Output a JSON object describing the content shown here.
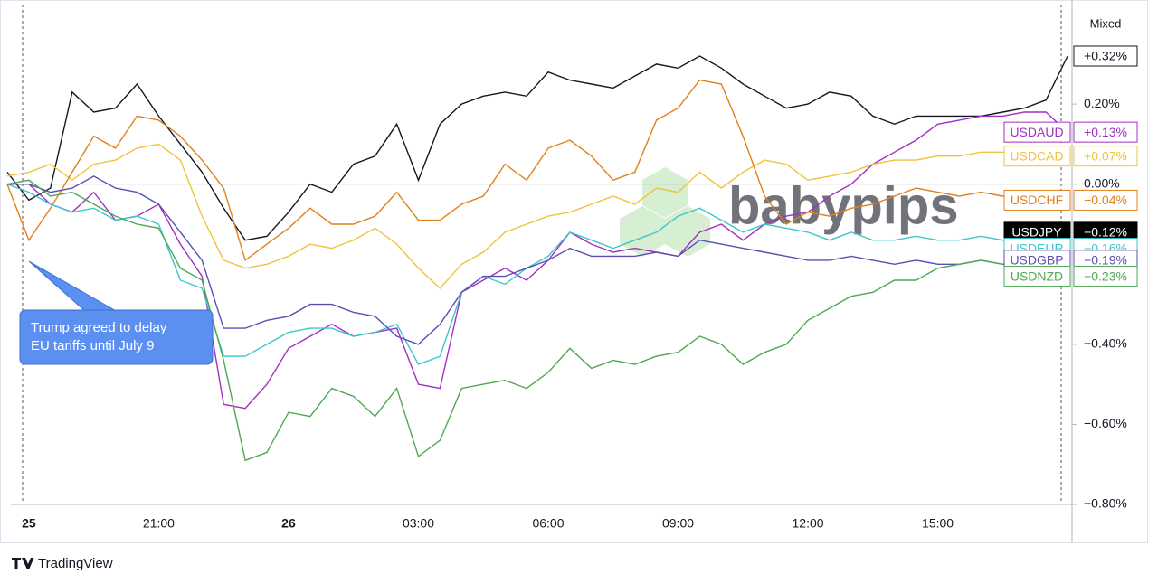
{
  "chart_data": {
    "type": "line",
    "header": "Mixed",
    "annotation": [
      "Trump agreed to delay",
      "EU tariffs until July 9"
    ],
    "watermark": "babypips",
    "footer": "TradingView",
    "categories": [
      null,
      "25",
      null,
      null,
      null,
      null,
      null,
      "21:00",
      null,
      null,
      null,
      null,
      null,
      "26",
      null,
      null,
      null,
      null,
      null,
      "03:00",
      null,
      null,
      null,
      null,
      null,
      "06:00",
      null,
      null,
      null,
      null,
      null,
      "09:00",
      null,
      null,
      null,
      null,
      null,
      "12:00",
      null,
      null,
      null,
      null,
      null,
      "15:00",
      null,
      null,
      null,
      null,
      null,
      null
    ],
    "ylim": [
      -0.8,
      0.46
    ],
    "yticks": [
      {
        "value": 0.2,
        "label": "0.20%"
      },
      {
        "value": 0,
        "label": "0.00%"
      },
      {
        "value": -0.4,
        "label": "−0.40%"
      },
      {
        "value": -0.6,
        "label": "−0.60%"
      },
      {
        "value": -0.8,
        "label": "−0.80%"
      }
    ],
    "zero_line": true,
    "series": [
      {
        "color": "#131722",
        "values": [
          0.03,
          -0.04,
          -0.01,
          0.23,
          0.18,
          0.19,
          0.25,
          0.17,
          0.1,
          0.03,
          -0.06,
          -0.14,
          -0.13,
          -0.07,
          0,
          -0.02,
          0.05,
          0.07,
          0.15,
          0.01,
          0.15,
          0.2,
          0.22,
          0.23,
          0.22,
          0.28,
          0.26,
          0.25,
          0.24,
          0.27,
          0.3,
          0.29,
          0.32,
          0.29,
          0.25,
          0.22,
          0.19,
          0.2,
          0.23,
          0.22,
          0.17,
          0.15,
          0.17,
          0.17,
          0.17,
          0.17,
          0.18,
          0.19,
          0.21,
          0.32
        ],
        "value_labels": [
          null,
          null,
          null,
          null,
          null,
          null,
          null,
          null,
          null,
          null,
          null,
          null,
          null,
          null,
          null,
          null,
          null,
          null,
          null,
          null,
          null,
          null,
          null,
          null,
          null,
          null,
          null,
          null,
          null,
          null,
          null,
          null,
          null,
          null,
          null,
          null,
          null,
          null,
          null,
          null,
          null,
          null,
          null,
          null,
          null,
          null,
          null,
          null,
          null,
          "+0.32%"
        ]
      },
      {
        "name": "USDAUD",
        "color": "#a32fc4",
        "values": [
          0,
          0,
          -0.05,
          -0.07,
          -0.02,
          -0.09,
          -0.08,
          -0.05,
          -0.15,
          -0.23,
          -0.55,
          -0.56,
          -0.5,
          -0.41,
          -0.38,
          -0.35,
          -0.38,
          -0.37,
          -0.36,
          -0.5,
          -0.51,
          -0.27,
          -0.24,
          -0.21,
          -0.24,
          -0.19,
          -0.12,
          -0.15,
          -0.17,
          -0.16,
          -0.17,
          -0.18,
          -0.12,
          -0.1,
          -0.14,
          -0.1,
          -0.08,
          -0.07,
          -0.03,
          0,
          0.05,
          0.08,
          0.11,
          0.15,
          0.16,
          0.17,
          0.17,
          0.18,
          0.18,
          0.13
        ],
        "value_labels": [
          null,
          null,
          null,
          null,
          null,
          null,
          null,
          null,
          null,
          null,
          null,
          null,
          null,
          null,
          null,
          null,
          null,
          null,
          null,
          null,
          null,
          null,
          null,
          null,
          null,
          null,
          null,
          null,
          null,
          null,
          null,
          null,
          null,
          null,
          null,
          null,
          null,
          null,
          null,
          null,
          null,
          null,
          null,
          null,
          null,
          null,
          null,
          null,
          null,
          "+0.13%"
        ]
      },
      {
        "name": "USDCAD",
        "color": "#f0c23e",
        "values": [
          0.02,
          0.03,
          0.05,
          0.01,
          0.05,
          0.06,
          0.09,
          0.1,
          0.06,
          -0.08,
          -0.19,
          -0.21,
          -0.2,
          -0.18,
          -0.15,
          -0.16,
          -0.14,
          -0.11,
          -0.15,
          -0.21,
          -0.26,
          -0.2,
          -0.17,
          -0.12,
          -0.1,
          -0.08,
          -0.07,
          -0.05,
          -0.03,
          -0.05,
          -0.01,
          -0.02,
          0.03,
          -0.01,
          0.03,
          0.06,
          0.05,
          0.01,
          0.02,
          0.03,
          0.05,
          0.06,
          0.06,
          0.07,
          0.07,
          0.08,
          0.08,
          0.08,
          0.08,
          0.07
        ],
        "value_labels": [
          null,
          null,
          null,
          null,
          null,
          null,
          null,
          null,
          null,
          null,
          null,
          null,
          null,
          null,
          null,
          null,
          null,
          null,
          null,
          null,
          null,
          null,
          null,
          null,
          null,
          null,
          null,
          null,
          null,
          null,
          null,
          null,
          null,
          null,
          null,
          null,
          null,
          null,
          null,
          null,
          null,
          null,
          null,
          null,
          null,
          null,
          null,
          null,
          null,
          "+0.07%"
        ]
      },
      {
        "name": "USDCHF",
        "color": "#e0801c",
        "values": [
          0,
          -0.14,
          -0.06,
          0.03,
          0.12,
          0.09,
          0.17,
          0.16,
          0.12,
          0.06,
          -0.01,
          -0.19,
          -0.15,
          -0.11,
          -0.06,
          -0.1,
          -0.1,
          -0.08,
          -0.02,
          -0.09,
          -0.09,
          -0.05,
          -0.03,
          0.05,
          0.01,
          0.09,
          0.11,
          0.07,
          0.01,
          0.03,
          0.16,
          0.19,
          0.26,
          0.25,
          0.12,
          -0.03,
          -0.1,
          -0.07,
          -0.08,
          -0.06,
          -0.05,
          -0.03,
          -0.01,
          -0.02,
          -0.03,
          -0.02,
          -0.03,
          -0.03,
          -0.03,
          -0.04
        ],
        "value_labels": [
          null,
          null,
          null,
          null,
          null,
          null,
          null,
          null,
          null,
          null,
          null,
          null,
          null,
          null,
          null,
          null,
          null,
          null,
          null,
          null,
          null,
          null,
          null,
          null,
          null,
          null,
          null,
          null,
          null,
          null,
          null,
          null,
          null,
          null,
          null,
          null,
          null,
          null,
          null,
          null,
          null,
          null,
          null,
          null,
          null,
          null,
          null,
          null,
          null,
          "−0.04%"
        ]
      },
      {
        "name": "USDJPY",
        "color": "#000000",
        "label_style": "filled",
        "values": [
          null,
          null,
          null,
          null,
          null,
          null,
          null,
          null,
          null,
          null,
          null,
          null,
          null,
          null,
          null,
          null,
          null,
          null,
          null,
          null,
          null,
          null,
          null,
          null,
          null,
          null,
          null,
          null,
          null,
          null,
          null,
          null,
          null,
          null,
          null,
          null,
          null,
          null,
          null,
          null,
          null,
          null,
          null,
          null,
          null,
          null,
          null,
          null,
          null,
          -0.12
        ],
        "value_labels": [
          null,
          null,
          null,
          null,
          null,
          null,
          null,
          null,
          null,
          null,
          null,
          null,
          null,
          null,
          null,
          null,
          null,
          null,
          null,
          null,
          null,
          null,
          null,
          null,
          null,
          null,
          null,
          null,
          null,
          null,
          null,
          null,
          null,
          null,
          null,
          null,
          null,
          null,
          null,
          null,
          null,
          null,
          null,
          null,
          null,
          null,
          null,
          null,
          null,
          "−0.12%"
        ]
      },
      {
        "name": "USDEUR",
        "color": "#3cc6cc",
        "values": [
          0,
          -0.02,
          -0.05,
          -0.07,
          -0.06,
          -0.09,
          -0.08,
          -0.1,
          -0.24,
          -0.26,
          -0.43,
          -0.43,
          -0.4,
          -0.37,
          -0.36,
          -0.36,
          -0.38,
          -0.37,
          -0.35,
          -0.45,
          -0.43,
          -0.27,
          -0.23,
          -0.25,
          -0.21,
          -0.18,
          -0.12,
          -0.14,
          -0.16,
          -0.14,
          -0.12,
          -0.08,
          -0.06,
          -0.09,
          -0.12,
          -0.1,
          -0.11,
          -0.12,
          -0.14,
          -0.12,
          -0.14,
          -0.14,
          -0.13,
          -0.14,
          -0.14,
          -0.13,
          -0.14,
          -0.15,
          -0.14,
          -0.16
        ],
        "value_labels": [
          null,
          null,
          null,
          null,
          null,
          null,
          null,
          null,
          null,
          null,
          null,
          null,
          null,
          null,
          null,
          null,
          null,
          null,
          null,
          null,
          null,
          null,
          null,
          null,
          null,
          null,
          null,
          null,
          null,
          null,
          null,
          null,
          null,
          null,
          null,
          null,
          null,
          null,
          null,
          null,
          null,
          null,
          null,
          null,
          null,
          null,
          null,
          null,
          null,
          "−0.16%"
        ]
      },
      {
        "name": "USDGBP",
        "color": "#5a4fb3",
        "values": [
          0,
          0,
          -0.02,
          -0.01,
          0.02,
          -0.01,
          -0.02,
          -0.05,
          -0.12,
          -0.19,
          -0.36,
          -0.36,
          -0.34,
          -0.33,
          -0.3,
          -0.3,
          -0.32,
          -0.33,
          -0.38,
          -0.4,
          -0.35,
          -0.27,
          -0.23,
          -0.23,
          -0.21,
          -0.19,
          -0.16,
          -0.18,
          -0.18,
          -0.18,
          -0.17,
          -0.18,
          -0.14,
          -0.15,
          -0.16,
          -0.17,
          -0.18,
          -0.19,
          -0.19,
          -0.18,
          -0.19,
          -0.2,
          -0.19,
          -0.2,
          -0.2,
          -0.19,
          -0.2,
          -0.19,
          -0.19,
          -0.19
        ],
        "value_labels": [
          null,
          null,
          null,
          null,
          null,
          null,
          null,
          null,
          null,
          null,
          null,
          null,
          null,
          null,
          null,
          null,
          null,
          null,
          null,
          null,
          null,
          null,
          null,
          null,
          null,
          null,
          null,
          null,
          null,
          null,
          null,
          null,
          null,
          null,
          null,
          null,
          null,
          null,
          null,
          null,
          null,
          null,
          null,
          null,
          null,
          null,
          null,
          null,
          null,
          "−0.19%"
        ]
      },
      {
        "name": "USDNZD",
        "color": "#4ea852",
        "values": [
          0,
          0.01,
          -0.03,
          -0.02,
          -0.05,
          -0.08,
          -0.1,
          -0.11,
          -0.21,
          -0.24,
          -0.44,
          -0.69,
          -0.67,
          -0.57,
          -0.58,
          -0.51,
          -0.53,
          -0.58,
          -0.51,
          -0.68,
          -0.64,
          -0.51,
          -0.5,
          -0.49,
          -0.51,
          -0.47,
          -0.41,
          -0.46,
          -0.44,
          -0.45,
          -0.43,
          -0.42,
          -0.38,
          -0.4,
          -0.45,
          -0.42,
          -0.4,
          -0.34,
          -0.31,
          -0.28,
          -0.27,
          -0.24,
          -0.24,
          -0.21,
          -0.2,
          -0.19,
          -0.2,
          -0.21,
          -0.22,
          -0.23
        ],
        "value_labels": [
          null,
          null,
          null,
          null,
          null,
          null,
          null,
          null,
          null,
          null,
          null,
          null,
          null,
          null,
          null,
          null,
          null,
          null,
          null,
          null,
          null,
          null,
          null,
          null,
          null,
          null,
          null,
          null,
          null,
          null,
          null,
          null,
          null,
          null,
          null,
          null,
          null,
          null,
          null,
          null,
          null,
          null,
          null,
          null,
          null,
          null,
          null,
          null,
          null,
          "−0.23%"
        ]
      }
    ]
  }
}
